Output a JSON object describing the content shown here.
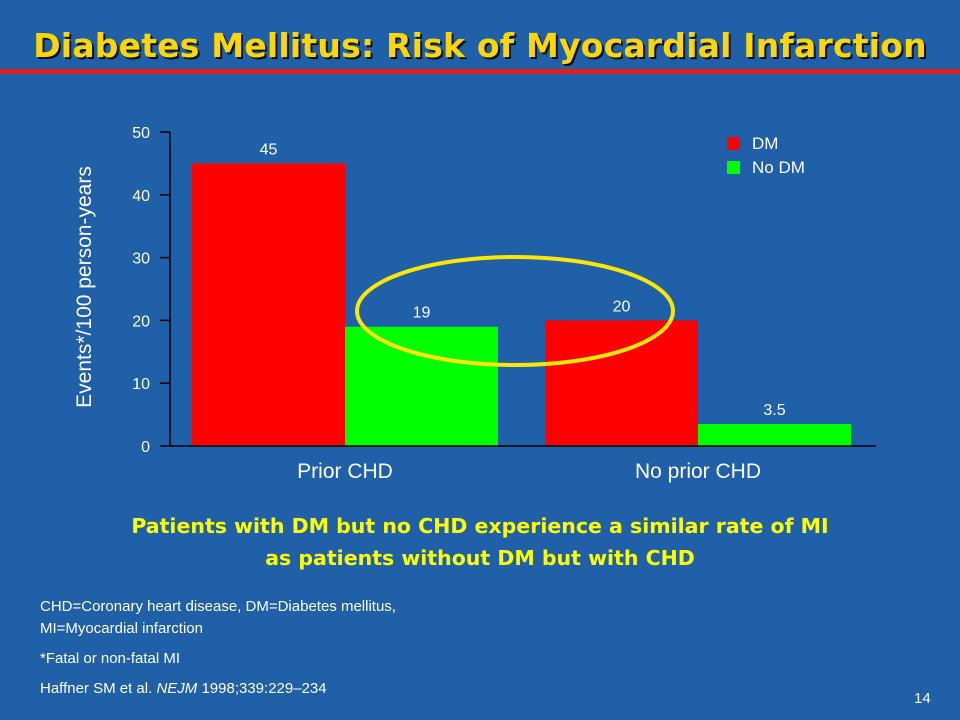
{
  "slide": {
    "title": "Diabetes Mellitus: Risk of Myocardial Infarction",
    "callout_lines": [
      "Patients with DM but no CHD experience a similar rate of MI",
      "as patients without DM but with CHD"
    ],
    "footnotes": {
      "abbrev_line1": "CHD=Coronary heart disease, DM=Diabetes mellitus,",
      "abbrev_line2": "MI=Myocardial infarction",
      "asterisk": "*Fatal or non-fatal MI",
      "reference_authors": "Haffner SM et al. ",
      "reference_journal": "NEJM",
      "reference_details": " 1998;339:229–234"
    },
    "page_number": "14"
  },
  "chart_data": {
    "type": "bar",
    "title": "",
    "xlabel": "",
    "ylabel": "Events*/100 person-years",
    "ylim": [
      0,
      50
    ],
    "yticks": [
      0,
      10,
      20,
      30,
      40,
      50
    ],
    "categories": [
      "Prior CHD",
      "No prior CHD"
    ],
    "series": [
      {
        "name": "DM",
        "color": "#ff0000",
        "values": [
          45,
          20
        ],
        "labels": [
          "45",
          "20"
        ]
      },
      {
        "name": "No DM",
        "color": "#00ff00",
        "values": [
          19,
          3.5
        ],
        "labels": [
          "19",
          "3.5"
        ]
      }
    ],
    "legend_position": "top-right",
    "grid": false,
    "annotation": {
      "shape": "ellipse",
      "color": "#ffe600",
      "encircles": [
        "Prior CHD / No DM",
        "No prior CHD / DM"
      ]
    }
  }
}
